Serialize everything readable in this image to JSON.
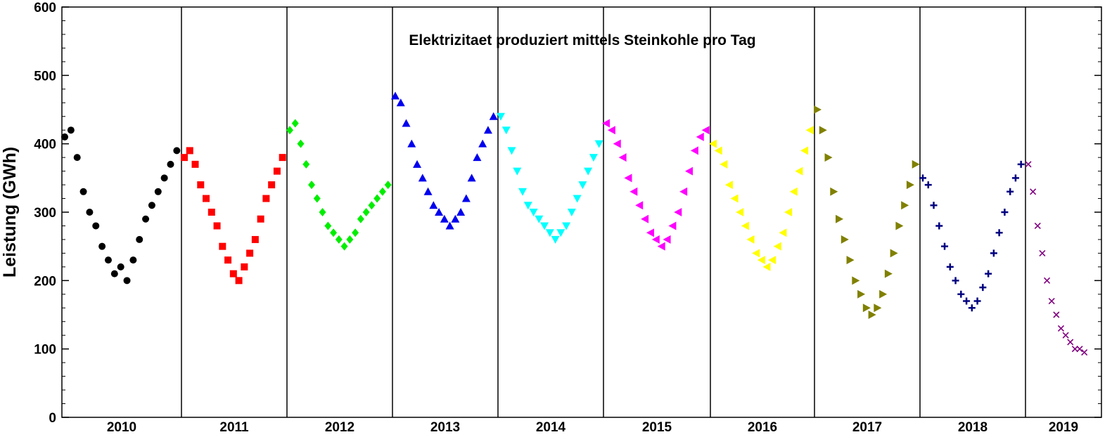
{
  "chart_data": {
    "type": "scatter",
    "title": "Elektrizitaet produziert mittels Steinkohle pro Tag",
    "xlabel": "",
    "ylabel": "Leistung (GWh)",
    "ylim": [
      0,
      600
    ],
    "yticks": [
      0,
      100,
      200,
      300,
      400,
      500,
      600
    ],
    "yminor_step": 20,
    "x_unit": "days of year",
    "grid": false,
    "legend": "none",
    "categories": [
      "2010",
      "2011",
      "2012",
      "2013",
      "2014",
      "2015",
      "2016",
      "2017",
      "2018",
      "2019"
    ],
    "series": [
      {
        "year": "2010",
        "color": "#000000",
        "marker": "circle",
        "values": [
          [
            0,
            410
          ],
          [
            20,
            420
          ],
          [
            40,
            380
          ],
          [
            60,
            330
          ],
          [
            80,
            300
          ],
          [
            100,
            280
          ],
          [
            120,
            250
          ],
          [
            140,
            230
          ],
          [
            160,
            210
          ],
          [
            180,
            220
          ],
          [
            200,
            200
          ],
          [
            220,
            230
          ],
          [
            240,
            260
          ],
          [
            260,
            290
          ],
          [
            280,
            310
          ],
          [
            300,
            330
          ],
          [
            320,
            350
          ],
          [
            340,
            370
          ],
          [
            360,
            390
          ]
        ]
      },
      {
        "year": "2011",
        "color": "#ff0000",
        "marker": "square",
        "values": [
          [
            0,
            380
          ],
          [
            20,
            390
          ],
          [
            40,
            370
          ],
          [
            60,
            340
          ],
          [
            80,
            320
          ],
          [
            100,
            300
          ],
          [
            120,
            280
          ],
          [
            140,
            250
          ],
          [
            160,
            230
          ],
          [
            180,
            210
          ],
          [
            200,
            200
          ],
          [
            220,
            220
          ],
          [
            240,
            240
          ],
          [
            260,
            260
          ],
          [
            280,
            290
          ],
          [
            300,
            320
          ],
          [
            320,
            340
          ],
          [
            340,
            360
          ],
          [
            360,
            380
          ]
        ]
      },
      {
        "year": "2012",
        "color": "#00ee00",
        "marker": "diamond",
        "values": [
          [
            0,
            420
          ],
          [
            20,
            430
          ],
          [
            40,
            400
          ],
          [
            60,
            370
          ],
          [
            80,
            340
          ],
          [
            100,
            320
          ],
          [
            120,
            300
          ],
          [
            140,
            280
          ],
          [
            160,
            270
          ],
          [
            180,
            260
          ],
          [
            200,
            250
          ],
          [
            220,
            260
          ],
          [
            240,
            270
          ],
          [
            260,
            290
          ],
          [
            280,
            300
          ],
          [
            300,
            310
          ],
          [
            320,
            320
          ],
          [
            340,
            330
          ],
          [
            360,
            340
          ]
        ]
      },
      {
        "year": "2013",
        "color": "#0000ee",
        "marker": "triangle-up",
        "values": [
          [
            0,
            470
          ],
          [
            20,
            460
          ],
          [
            40,
            430
          ],
          [
            60,
            400
          ],
          [
            80,
            370
          ],
          [
            100,
            350
          ],
          [
            120,
            330
          ],
          [
            140,
            310
          ],
          [
            160,
            300
          ],
          [
            180,
            290
          ],
          [
            200,
            280
          ],
          [
            220,
            290
          ],
          [
            240,
            300
          ],
          [
            260,
            320
          ],
          [
            280,
            350
          ],
          [
            300,
            380
          ],
          [
            320,
            400
          ],
          [
            340,
            420
          ],
          [
            360,
            440
          ]
        ]
      },
      {
        "year": "2014",
        "color": "#00ffff",
        "marker": "triangle-down",
        "values": [
          [
            0,
            440
          ],
          [
            20,
            420
          ],
          [
            40,
            390
          ],
          [
            60,
            360
          ],
          [
            80,
            330
          ],
          [
            100,
            310
          ],
          [
            120,
            300
          ],
          [
            140,
            290
          ],
          [
            160,
            280
          ],
          [
            180,
            270
          ],
          [
            200,
            260
          ],
          [
            220,
            270
          ],
          [
            240,
            280
          ],
          [
            260,
            300
          ],
          [
            280,
            320
          ],
          [
            300,
            340
          ],
          [
            320,
            360
          ],
          [
            340,
            380
          ],
          [
            360,
            400
          ]
        ]
      },
      {
        "year": "2015",
        "color": "#ff00ff",
        "marker": "triangle-left",
        "values": [
          [
            0,
            430
          ],
          [
            20,
            420
          ],
          [
            40,
            400
          ],
          [
            60,
            380
          ],
          [
            80,
            350
          ],
          [
            100,
            330
          ],
          [
            120,
            310
          ],
          [
            140,
            290
          ],
          [
            160,
            270
          ],
          [
            180,
            260
          ],
          [
            200,
            250
          ],
          [
            220,
            260
          ],
          [
            240,
            280
          ],
          [
            260,
            300
          ],
          [
            280,
            330
          ],
          [
            300,
            360
          ],
          [
            320,
            390
          ],
          [
            340,
            410
          ],
          [
            360,
            420
          ]
        ]
      },
      {
        "year": "2016",
        "color": "#ffff00",
        "marker": "triangle-left",
        "values": [
          [
            0,
            400
          ],
          [
            20,
            390
          ],
          [
            40,
            370
          ],
          [
            60,
            340
          ],
          [
            80,
            320
          ],
          [
            100,
            300
          ],
          [
            120,
            280
          ],
          [
            140,
            260
          ],
          [
            160,
            240
          ],
          [
            180,
            230
          ],
          [
            200,
            220
          ],
          [
            220,
            230
          ],
          [
            240,
            250
          ],
          [
            260,
            270
          ],
          [
            280,
            300
          ],
          [
            300,
            330
          ],
          [
            320,
            360
          ],
          [
            340,
            390
          ],
          [
            360,
            420
          ]
        ]
      },
      {
        "year": "2017",
        "color": "#808000",
        "marker": "triangle-right",
        "values": [
          [
            0,
            450
          ],
          [
            20,
            420
          ],
          [
            40,
            380
          ],
          [
            60,
            330
          ],
          [
            80,
            290
          ],
          [
            100,
            260
          ],
          [
            120,
            230
          ],
          [
            140,
            200
          ],
          [
            160,
            180
          ],
          [
            180,
            160
          ],
          [
            200,
            150
          ],
          [
            220,
            160
          ],
          [
            240,
            180
          ],
          [
            260,
            210
          ],
          [
            280,
            240
          ],
          [
            300,
            280
          ],
          [
            320,
            310
          ],
          [
            340,
            340
          ],
          [
            360,
            370
          ]
        ]
      },
      {
        "year": "2018",
        "color": "#000080",
        "marker": "plus",
        "values": [
          [
            0,
            350
          ],
          [
            20,
            340
          ],
          [
            40,
            310
          ],
          [
            60,
            280
          ],
          [
            80,
            250
          ],
          [
            100,
            220
          ],
          [
            120,
            200
          ],
          [
            140,
            180
          ],
          [
            160,
            170
          ],
          [
            180,
            160
          ],
          [
            200,
            170
          ],
          [
            220,
            190
          ],
          [
            240,
            210
          ],
          [
            260,
            240
          ],
          [
            280,
            270
          ],
          [
            300,
            300
          ],
          [
            320,
            330
          ],
          [
            340,
            350
          ],
          [
            360,
            370
          ]
        ]
      },
      {
        "year": "2019",
        "color": "#800080",
        "marker": "cross",
        "values": [
          [
            0,
            370
          ],
          [
            15,
            330
          ],
          [
            30,
            280
          ],
          [
            45,
            240
          ],
          [
            60,
            200
          ],
          [
            75,
            170
          ],
          [
            90,
            150
          ],
          [
            105,
            130
          ],
          [
            120,
            120
          ],
          [
            135,
            110
          ],
          [
            150,
            100
          ],
          [
            165,
            100
          ],
          [
            180,
            95
          ]
        ]
      }
    ]
  }
}
